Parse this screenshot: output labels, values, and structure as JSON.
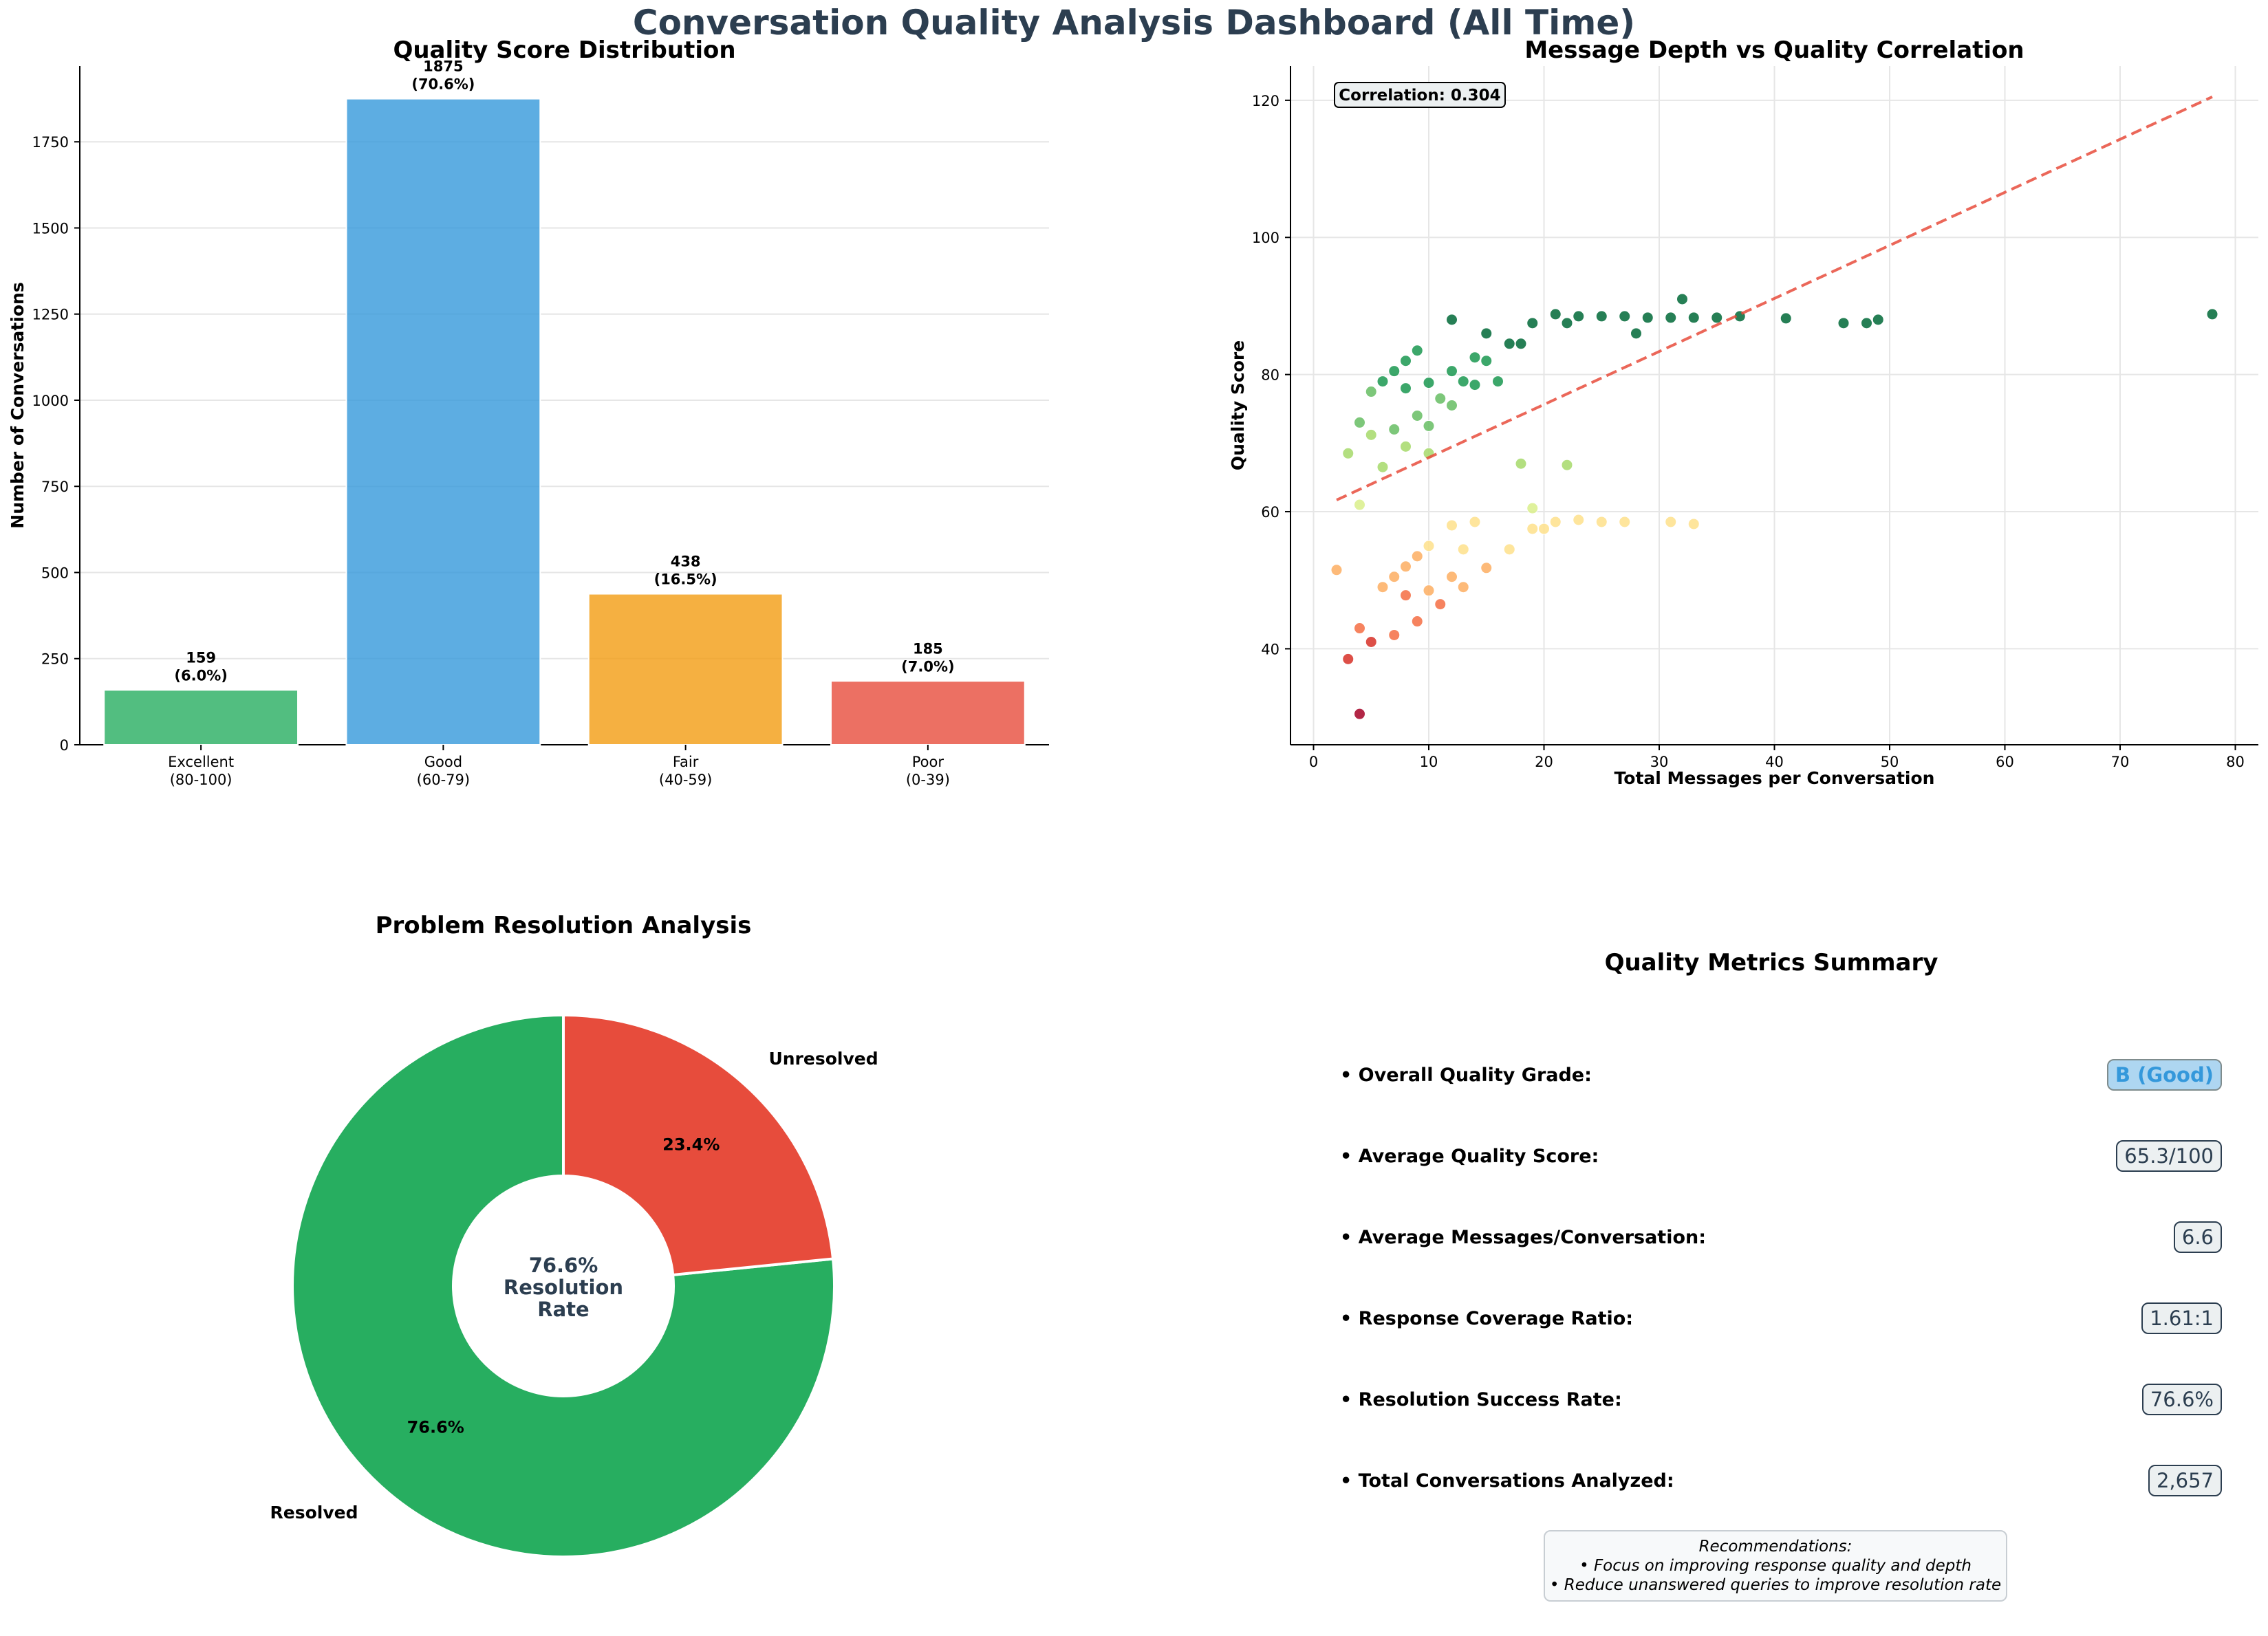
{
  "dashboard": {
    "title": "Conversation Quality Analysis Dashboard (All Time)"
  },
  "chart_data": [
    {
      "type": "bar",
      "title": "Quality Score Distribution",
      "xlabel": "",
      "ylabel": "Number of Conversations",
      "categories": [
        [
          "Excellent",
          "(80-100)"
        ],
        [
          "Good",
          "(60-79)"
        ],
        [
          "Fair",
          "(40-59)"
        ],
        [
          "Poor",
          "(0-39)"
        ]
      ],
      "values": [
        159,
        1875,
        438,
        185
      ],
      "data_labels": [
        [
          "159",
          "(6.0%)"
        ],
        [
          "1875",
          "(70.6%)"
        ],
        [
          "438",
          "(16.5%)"
        ],
        [
          "185",
          "(7.0%)"
        ]
      ],
      "colors": [
        "#27ae60",
        "#3498db",
        "#f39c12",
        "#e74c3c"
      ],
      "ylim": [
        0,
        1970
      ],
      "yticks": [
        0,
        250,
        500,
        750,
        1000,
        1250,
        1500,
        1750
      ],
      "grid": true
    },
    {
      "type": "scatter",
      "title": "Message Depth vs Quality Correlation",
      "xlabel": "Total Messages per Conversation",
      "ylabel": "Quality Score",
      "xlim": [
        -2,
        82
      ],
      "ylim": [
        26,
        125
      ],
      "xticks": [
        0,
        10,
        20,
        30,
        40,
        50,
        60,
        70,
        80
      ],
      "yticks": [
        40,
        60,
        80,
        100,
        120
      ],
      "grid": true,
      "annotation": "Correlation: 0.304",
      "points": [
        [
          2,
          51.5
        ],
        [
          3,
          38.5
        ],
        [
          3,
          68.5
        ],
        [
          4,
          30.5
        ],
        [
          4,
          43
        ],
        [
          4,
          61
        ],
        [
          4,
          73
        ],
        [
          5,
          41
        ],
        [
          5,
          71.2
        ],
        [
          5,
          77.5
        ],
        [
          6,
          49
        ],
        [
          6,
          66.5
        ],
        [
          6,
          79
        ],
        [
          7,
          42
        ],
        [
          7,
          50.5
        ],
        [
          7,
          72
        ],
        [
          7,
          80.5
        ],
        [
          8,
          47.8
        ],
        [
          8,
          52
        ],
        [
          8,
          69.5
        ],
        [
          8,
          78
        ],
        [
          8,
          82
        ],
        [
          9,
          44
        ],
        [
          9,
          53.5
        ],
        [
          9,
          74
        ],
        [
          9,
          83.5
        ],
        [
          10,
          48.5
        ],
        [
          10,
          55
        ],
        [
          10,
          68.5
        ],
        [
          10,
          72.5
        ],
        [
          10,
          78.8
        ],
        [
          11,
          46.5
        ],
        [
          11,
          76.5
        ],
        [
          12,
          50.5
        ],
        [
          12,
          58
        ],
        [
          12,
          75.5
        ],
        [
          12,
          80.5
        ],
        [
          12,
          88
        ],
        [
          13,
          49
        ],
        [
          13,
          54.5
        ],
        [
          13,
          79
        ],
        [
          14,
          58.5
        ],
        [
          14,
          78.5
        ],
        [
          14,
          82.5
        ],
        [
          15,
          51.8
        ],
        [
          15,
          82
        ],
        [
          15,
          86
        ],
        [
          16,
          79
        ],
        [
          17,
          54.5
        ],
        [
          17,
          84.5
        ],
        [
          18,
          67
        ],
        [
          18,
          84.5
        ],
        [
          19,
          57.5
        ],
        [
          19,
          60.5
        ],
        [
          19,
          87.5
        ],
        [
          20,
          57.5
        ],
        [
          21,
          58.5
        ],
        [
          21,
          88.8
        ],
        [
          22,
          66.8
        ],
        [
          22,
          87.5
        ],
        [
          23,
          58.8
        ],
        [
          23,
          88.5
        ],
        [
          25,
          58.5
        ],
        [
          25,
          88.5
        ],
        [
          27,
          58.5
        ],
        [
          27,
          88.5
        ],
        [
          28,
          86
        ],
        [
          29,
          88.3
        ],
        [
          31,
          58.5
        ],
        [
          31,
          88.3
        ],
        [
          32,
          91
        ],
        [
          33,
          58.2
        ],
        [
          33,
          88.3
        ],
        [
          35,
          88.3
        ],
        [
          37,
          88.5
        ],
        [
          41,
          88.2
        ],
        [
          46,
          87.5
        ],
        [
          48,
          87.5
        ],
        [
          49,
          88
        ],
        [
          78,
          88.8
        ]
      ],
      "trendline": {
        "x": [
          2,
          78
        ],
        "y": [
          61.7,
          120.5
        ]
      },
      "colormap": [
        "#a50026",
        "#d73027",
        "#f46d43",
        "#fdae61",
        "#fee08b",
        "#d9ef8b",
        "#a6d96a",
        "#66bd63",
        "#1a9850",
        "#006837"
      ]
    },
    {
      "type": "pie",
      "title": "Problem Resolution Analysis",
      "slices": [
        {
          "label": "Resolved",
          "value": 76.6,
          "pct_label": "76.6%",
          "color": "#27ae60"
        },
        {
          "label": "Unresolved",
          "value": 23.4,
          "pct_label": "23.4%",
          "color": "#e74c3c"
        }
      ],
      "center_text": [
        "76.6%",
        "Resolution",
        "Rate"
      ]
    }
  ],
  "summary": {
    "title": "Quality Metrics Summary",
    "metrics": [
      {
        "label": "• Overall Quality Grade:",
        "value": "B (Good)"
      },
      {
        "label": "• Average Quality Score:",
        "value": "65.3/100"
      },
      {
        "label": "• Average Messages/Conversation:",
        "value": "6.6"
      },
      {
        "label": "• Response Coverage Ratio:",
        "value": "1.61:1"
      },
      {
        "label": "• Resolution Success Rate:",
        "value": "76.6%"
      },
      {
        "label": "• Total Conversations Analyzed:",
        "value": "2,657"
      }
    ],
    "recommendations": {
      "heading": "Recommendations:",
      "items": [
        "• Focus on improving response quality and depth",
        "• Reduce unanswered queries to improve resolution rate"
      ]
    }
  }
}
